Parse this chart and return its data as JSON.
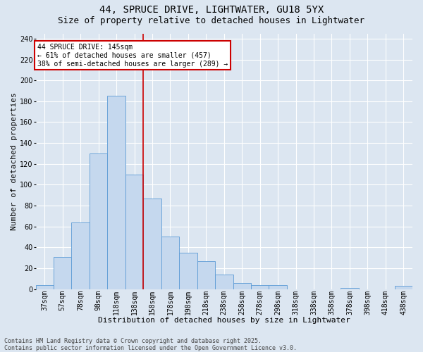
{
  "title1": "44, SPRUCE DRIVE, LIGHTWATER, GU18 5YX",
  "title2": "Size of property relative to detached houses in Lightwater",
  "xlabel": "Distribution of detached houses by size in Lightwater",
  "ylabel": "Number of detached properties",
  "categories": [
    "37sqm",
    "57sqm",
    "78sqm",
    "98sqm",
    "118sqm",
    "138sqm",
    "158sqm",
    "178sqm",
    "198sqm",
    "218sqm",
    "238sqm",
    "258sqm",
    "278sqm",
    "298sqm",
    "318sqm",
    "338sqm",
    "358sqm",
    "378sqm",
    "398sqm",
    "418sqm",
    "438sqm"
  ],
  "values": [
    4,
    31,
    64,
    130,
    185,
    110,
    87,
    50,
    35,
    27,
    14,
    6,
    4,
    4,
    0,
    0,
    0,
    1,
    0,
    0,
    3
  ],
  "bar_color": "#c5d8ee",
  "bar_edge_color": "#5b9bd5",
  "background_color": "#dce6f1",
  "vline_color": "#cc0000",
  "vline_x": 5.5,
  "annotation_text": "44 SPRUCE DRIVE: 145sqm\n← 61% of detached houses are smaller (457)\n38% of semi-detached houses are larger (289) →",
  "annotation_box_color": "white",
  "annotation_box_edge_color": "#cc0000",
  "ylim": [
    0,
    245
  ],
  "yticks": [
    0,
    20,
    40,
    60,
    80,
    100,
    120,
    140,
    160,
    180,
    200,
    220,
    240
  ],
  "footer": "Contains HM Land Registry data © Crown copyright and database right 2025.\nContains public sector information licensed under the Open Government Licence v3.0.",
  "title1_fontsize": 10,
  "title2_fontsize": 9,
  "xlabel_fontsize": 8,
  "ylabel_fontsize": 8,
  "tick_fontsize": 7,
  "annotation_fontsize": 7,
  "footer_fontsize": 6
}
